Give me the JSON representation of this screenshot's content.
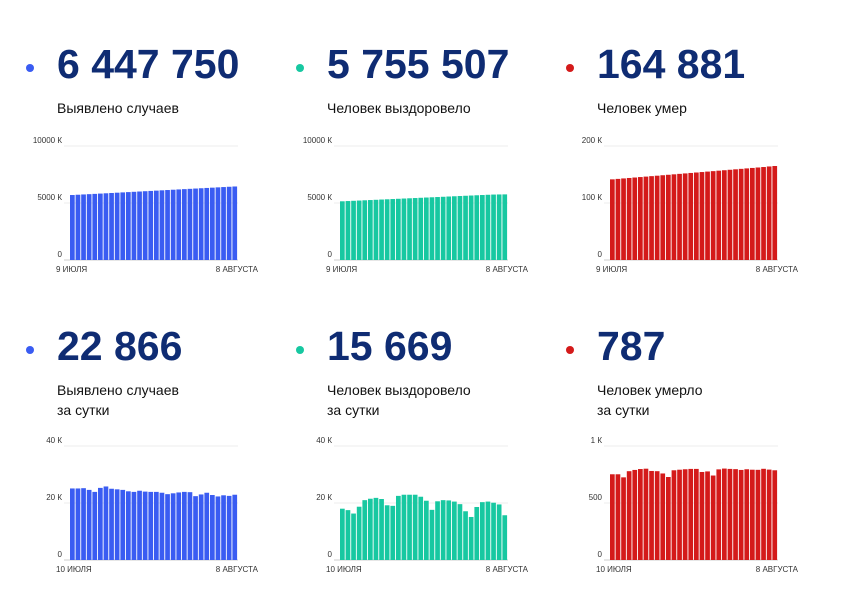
{
  "panels": [
    {
      "id": "total-cases",
      "value": "6 447 750",
      "label_lines": [
        "Выявлено случаев"
      ],
      "color": "#3a5cf2",
      "chart_data": {
        "type": "bar",
        "x_start_label": "9 ИЮЛЯ",
        "x_end_label": "8 АВГУСТА",
        "y_ticks": [
          {
            "v": 0,
            "label": "0"
          },
          {
            "v": 5000,
            "label": "5000 К"
          },
          {
            "v": 10000,
            "label": "10000 К"
          }
        ],
        "ylim": [
          0,
          10000
        ],
        "values": [
          5700,
          5725,
          5750,
          5775,
          5800,
          5826,
          5852,
          5878,
          5904,
          5930,
          5956,
          5982,
          6008,
          6034,
          6060,
          6086,
          6112,
          6138,
          6164,
          6190,
          6216,
          6242,
          6268,
          6294,
          6320,
          6346,
          6372,
          6398,
          6424,
          6448
        ]
      }
    },
    {
      "id": "total-recovered",
      "value": "5 755 507",
      "label_lines": [
        "Человек выздоровело"
      ],
      "color": "#17c8a1",
      "chart_data": {
        "type": "bar",
        "x_start_label": "9 ИЮЛЯ",
        "x_end_label": "8 АВГУСТА",
        "y_ticks": [
          {
            "v": 0,
            "label": "0"
          },
          {
            "v": 5000,
            "label": "5000 К"
          },
          {
            "v": 10000,
            "label": "10000 К"
          }
        ],
        "ylim": [
          0,
          10000
        ],
        "values": [
          5150,
          5172,
          5194,
          5216,
          5238,
          5260,
          5282,
          5304,
          5326,
          5348,
          5370,
          5392,
          5414,
          5436,
          5458,
          5480,
          5502,
          5524,
          5546,
          5568,
          5590,
          5612,
          5634,
          5656,
          5678,
          5700,
          5722,
          5740,
          5750,
          5756
        ]
      }
    },
    {
      "id": "total-deaths",
      "value": "164 881",
      "label_lines": [
        "Человек умер"
      ],
      "color": "#d41a1a",
      "chart_data": {
        "type": "bar",
        "x_start_label": "9 ИЮЛЯ",
        "x_end_label": "8 АВГУСТА",
        "y_ticks": [
          {
            "v": 0,
            "label": "0"
          },
          {
            "v": 100,
            "label": "100 К"
          },
          {
            "v": 200,
            "label": "200 К"
          }
        ],
        "ylim": [
          0,
          200
        ],
        "values": [
          141.5,
          142.3,
          143.1,
          143.9,
          144.7,
          145.5,
          146.3,
          147.1,
          147.9,
          148.7,
          149.5,
          150.3,
          151.1,
          151.9,
          152.7,
          153.5,
          154.3,
          155.1,
          155.9,
          156.7,
          157.5,
          158.3,
          159.1,
          159.9,
          160.7,
          161.5,
          162.3,
          163.1,
          164.1,
          164.9
        ]
      }
    },
    {
      "id": "daily-cases",
      "value": "22 866",
      "label_lines": [
        "Выявлено случаев",
        "за сутки"
      ],
      "color": "#3a5cf2",
      "chart_data": {
        "type": "bar",
        "x_start_label": "10 ИЮЛЯ",
        "x_end_label": "8 АВГУСТА",
        "y_ticks": [
          {
            "v": 0,
            "label": "0"
          },
          {
            "v": 20,
            "label": "20 К"
          },
          {
            "v": 40,
            "label": "40 К"
          }
        ],
        "ylim": [
          0,
          40
        ],
        "values": [
          25.1,
          25.1,
          25.2,
          24.6,
          23.9,
          25.3,
          25.8,
          25.0,
          24.8,
          24.6,
          24.1,
          23.9,
          24.3,
          24.0,
          23.9,
          23.9,
          23.6,
          23.1,
          23.4,
          23.7,
          23.9,
          23.8,
          22.4,
          23.0,
          23.6,
          22.8,
          22.3,
          22.7,
          22.5,
          22.9
        ]
      }
    },
    {
      "id": "daily-recovered",
      "value": "15 669",
      "label_lines": [
        "Человек выздоровело",
        "за сутки"
      ],
      "color": "#17c8a1",
      "chart_data": {
        "type": "bar",
        "x_start_label": "10 ИЮЛЯ",
        "x_end_label": "8 АВГУСТА",
        "y_ticks": [
          {
            "v": 0,
            "label": "0"
          },
          {
            "v": 20,
            "label": "20 К"
          },
          {
            "v": 40,
            "label": "40 К"
          }
        ],
        "ylim": [
          0,
          40
        ],
        "values": [
          18.0,
          17.5,
          16.3,
          18.7,
          21.0,
          21.5,
          21.8,
          21.4,
          19.2,
          19.0,
          22.5,
          22.9,
          22.9,
          22.9,
          22.2,
          20.8,
          17.6,
          20.6,
          21.0,
          20.9,
          20.5,
          19.6,
          17.1,
          15.1,
          18.6,
          20.3,
          20.5,
          20.1,
          19.5,
          15.7
        ]
      }
    },
    {
      "id": "daily-deaths",
      "value": "787",
      "label_lines": [
        "Человек умерло",
        "за сутки"
      ],
      "color": "#d41a1a",
      "chart_data": {
        "type": "bar",
        "x_start_label": "10 ИЮЛЯ",
        "x_end_label": "8 АВГУСТА",
        "y_ticks": [
          {
            "v": 0,
            "label": "0"
          },
          {
            "v": 500,
            "label": "500"
          },
          {
            "v": 1000,
            "label": "1 К"
          }
        ],
        "ylim": [
          0,
          1000
        ],
        "values": [
          752,
          752,
          725,
          779,
          790,
          798,
          801,
          781,
          779,
          759,
          728,
          787,
          792,
          796,
          799,
          799,
          772,
          777,
          741,
          795,
          802,
          799,
          797,
          790,
          796,
          792,
          791,
          800,
          793,
          787
        ]
      }
    }
  ]
}
